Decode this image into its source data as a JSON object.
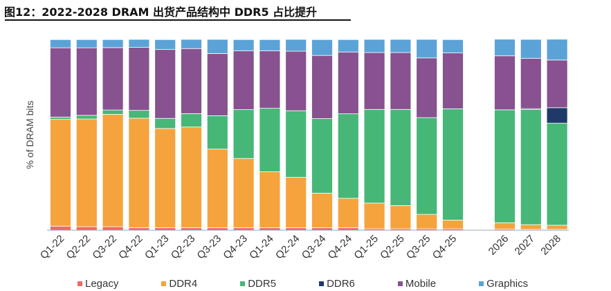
{
  "header": {
    "title": "图12：2022-2028 DRAM 出货产品结构中 DDR5 占比提升"
  },
  "chart_data": {
    "type": "bar",
    "stacked": true,
    "title": "图12：2022-2028 DRAM 出货产品结构中 DDR5 占比提升",
    "xlabel": "",
    "ylabel": "% of DRAM bits",
    "ylim": [
      0,
      100
    ],
    "grid": false,
    "legend_position": "bottom",
    "categories": [
      "Q1-22",
      "Q2-22",
      "Q3-22",
      "Q4-22",
      "Q1-23",
      "Q2-23",
      "Q3-23",
      "Q4-23",
      "Q1-24",
      "Q2-24",
      "Q3-24",
      "Q4-24",
      "Q1-25",
      "Q2-25",
      "Q3-25",
      "Q4-25",
      "2026",
      "2027",
      "2028"
    ],
    "series": [
      {
        "name": "Legacy",
        "color": "#ee6a62",
        "values": [
          2.1,
          1.8,
          1.8,
          1.3,
          1.3,
          1.3,
          1.3,
          1.3,
          1.3,
          1.3,
          1.3,
          1.3,
          0.7,
          0.7,
          0.7,
          0.7,
          0.5,
          0.4,
          0.4
        ]
      },
      {
        "name": "DDR4",
        "color": "#f5a33d",
        "values": [
          56.0,
          56.5,
          58.9,
          57.4,
          52.0,
          52.8,
          41.2,
          36.3,
          29.3,
          26.4,
          18.1,
          15.4,
          13.5,
          12.2,
          7.6,
          4.6,
          3.4,
          2.5,
          2.2
        ]
      },
      {
        "name": "DDR5",
        "color": "#46b777",
        "values": [
          1.2,
          1.9,
          2.3,
          4.1,
          5.3,
          7.0,
          17.5,
          25.6,
          33.3,
          34.9,
          39.1,
          44.3,
          49.1,
          50.4,
          50.7,
          58.3,
          59.2,
          60.3,
          53.5
        ]
      },
      {
        "name": "DDR6",
        "color": "#1f3a68",
        "values": [
          0,
          0,
          0,
          0,
          0,
          0,
          0,
          0,
          0,
          0,
          0,
          0,
          0,
          0,
          0,
          0,
          0,
          0.5,
          8.1
        ]
      },
      {
        "name": "Mobile",
        "color": "#87528f",
        "values": [
          36.3,
          35.4,
          32.7,
          33.0,
          36.1,
          34.1,
          32.6,
          30.8,
          30.1,
          31.2,
          33.1,
          32.4,
          29.8,
          29.8,
          31.3,
          29.3,
          28.3,
          26.4,
          25.0
        ]
      },
      {
        "name": "Graphics",
        "color": "#5ba3d7",
        "values": [
          4.3,
          4.3,
          4.2,
          4.2,
          5.2,
          4.8,
          7.4,
          5.9,
          5.9,
          6.2,
          8.3,
          6.5,
          6.9,
          6.9,
          9.7,
          7.0,
          8.7,
          9.9,
          10.9
        ]
      }
    ],
    "legend": [
      "Legacy",
      "DDR4",
      "DDR5",
      "DDR6",
      "Mobile",
      "Graphics"
    ]
  }
}
